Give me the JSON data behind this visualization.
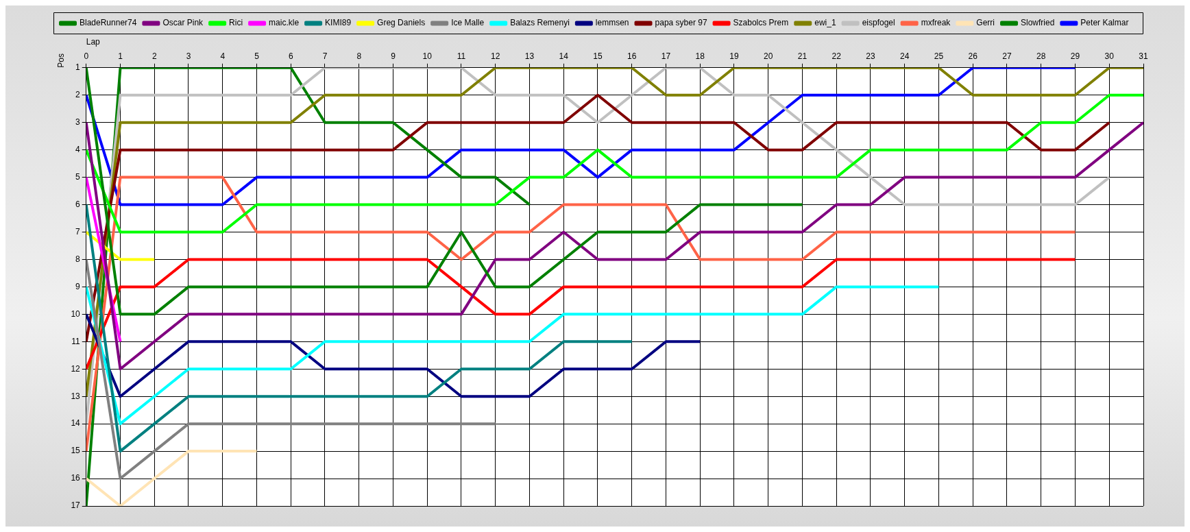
{
  "chart_data": {
    "type": "line",
    "xlabel": "Lap",
    "ylabel": "Pos",
    "x": [
      0,
      1,
      2,
      3,
      4,
      5,
      6,
      7,
      8,
      9,
      10,
      11,
      12,
      13,
      14,
      15,
      16,
      17,
      18,
      19,
      20,
      21,
      22,
      23,
      24,
      25,
      26,
      27,
      28,
      29,
      30,
      31
    ],
    "xlim": [
      0,
      31
    ],
    "xticks": [
      0,
      1,
      2,
      3,
      4,
      5,
      6,
      7,
      8,
      9,
      10,
      11,
      12,
      13,
      14,
      15,
      16,
      17,
      18,
      19,
      20,
      21,
      22,
      23,
      24,
      25,
      26,
      27,
      28,
      29,
      30,
      31
    ],
    "ylim": [
      17,
      1
    ],
    "yticks": [
      1,
      2,
      3,
      4,
      5,
      6,
      7,
      8,
      9,
      10,
      11,
      12,
      13,
      14,
      15,
      16,
      17
    ],
    "grid": true,
    "legend": "top",
    "marker": "none",
    "line_style": "solid",
    "series": [
      {
        "name": "BladeRunner74",
        "color": "#008000",
        "values": [
          1,
          10,
          10,
          9,
          9,
          9,
          9,
          9,
          9,
          9,
          9,
          7,
          9,
          9,
          8,
          7,
          7,
          7,
          6,
          6,
          6,
          6,
          null,
          null,
          null,
          null,
          null,
          null,
          null,
          null,
          null,
          null
        ]
      },
      {
        "name": "Oscar Pink",
        "color": "#800080",
        "values": [
          3,
          12,
          11,
          10,
          10,
          10,
          10,
          10,
          10,
          10,
          10,
          10,
          8,
          8,
          7,
          8,
          8,
          8,
          7,
          7,
          7,
          7,
          6,
          6,
          5,
          5,
          5,
          5,
          5,
          5,
          4,
          3
        ]
      },
      {
        "name": "Rici",
        "color": "#00ff00",
        "values": [
          4,
          7,
          7,
          7,
          7,
          6,
          6,
          6,
          6,
          6,
          6,
          6,
          6,
          5,
          5,
          4,
          5,
          5,
          5,
          5,
          5,
          5,
          5,
          4,
          4,
          4,
          4,
          4,
          3,
          3,
          2,
          2
        ]
      },
      {
        "name": "maic.kle",
        "color": "#ff00ff",
        "values": [
          5,
          11,
          null,
          null,
          null,
          null,
          null,
          null,
          null,
          null,
          null,
          null,
          null,
          null,
          null,
          null,
          null,
          null,
          null,
          null,
          null,
          null,
          null,
          null,
          null,
          null,
          null,
          null,
          null,
          null,
          null,
          null
        ]
      },
      {
        "name": "KIMI89",
        "color": "#008080",
        "values": [
          6,
          15,
          14,
          13,
          13,
          13,
          13,
          13,
          13,
          13,
          13,
          12,
          12,
          12,
          11,
          11,
          11,
          null,
          null,
          null,
          null,
          null,
          null,
          null,
          null,
          null,
          null,
          null,
          null,
          null,
          null,
          null
        ]
      },
      {
        "name": "Greg Daniels",
        "color": "#ffff00",
        "values": [
          7,
          8,
          8,
          null,
          null,
          null,
          null,
          null,
          null,
          null,
          null,
          null,
          null,
          null,
          null,
          null,
          null,
          null,
          null,
          null,
          null,
          null,
          null,
          null,
          null,
          null,
          null,
          null,
          null,
          null,
          null,
          null
        ]
      },
      {
        "name": "Ice Malle",
        "color": "#808080",
        "values": [
          8,
          16,
          15,
          14,
          14,
          14,
          14,
          14,
          14,
          14,
          14,
          14,
          14,
          null,
          null,
          null,
          null,
          null,
          null,
          null,
          null,
          null,
          null,
          null,
          null,
          null,
          null,
          null,
          null,
          null,
          null,
          null
        ]
      },
      {
        "name": "Balazs Remenyi",
        "color": "#00ffff",
        "values": [
          9,
          14,
          13,
          12,
          12,
          12,
          12,
          11,
          11,
          11,
          11,
          11,
          11,
          11,
          10,
          10,
          10,
          10,
          10,
          10,
          10,
          10,
          9,
          9,
          9,
          9,
          null,
          null,
          null,
          null,
          null,
          null
        ]
      },
      {
        "name": "lemmsen",
        "color": "#000080",
        "values": [
          10,
          13,
          12,
          11,
          11,
          11,
          11,
          12,
          12,
          12,
          12,
          13,
          13,
          13,
          12,
          12,
          12,
          11,
          11,
          null,
          null,
          null,
          null,
          null,
          null,
          null,
          null,
          null,
          null,
          null,
          null,
          null
        ]
      },
      {
        "name": "papa syber 97",
        "color": "#800000",
        "values": [
          11,
          4,
          4,
          4,
          4,
          4,
          4,
          4,
          4,
          4,
          3,
          3,
          3,
          3,
          3,
          2,
          3,
          3,
          3,
          3,
          4,
          4,
          3,
          3,
          3,
          3,
          3,
          3,
          4,
          4,
          3,
          null
        ]
      },
      {
        "name": "Szabolcs Prem",
        "color": "#ff0000",
        "values": [
          12,
          9,
          9,
          8,
          8,
          8,
          8,
          8,
          8,
          8,
          8,
          9,
          10,
          10,
          9,
          9,
          9,
          9,
          9,
          9,
          9,
          9,
          8,
          8,
          8,
          8,
          8,
          8,
          8,
          8,
          null,
          null
        ]
      },
      {
        "name": "ewi_1",
        "color": "#808000",
        "values": [
          13,
          3,
          3,
          3,
          3,
          3,
          3,
          2,
          2,
          2,
          2,
          2,
          1,
          1,
          1,
          1,
          1,
          2,
          2,
          1,
          1,
          1,
          1,
          1,
          1,
          1,
          2,
          2,
          2,
          2,
          1,
          1
        ]
      },
      {
        "name": "eispfogel",
        "color": "#c0c0c0",
        "values": [
          14,
          2,
          2,
          2,
          2,
          2,
          2,
          1,
          1,
          1,
          1,
          1,
          2,
          2,
          2,
          3,
          2,
          1,
          1,
          2,
          2,
          3,
          4,
          5,
          6,
          6,
          6,
          6,
          6,
          6,
          5,
          null
        ]
      },
      {
        "name": "mxfreak",
        "color": "#ff6347",
        "values": [
          15,
          5,
          5,
          5,
          5,
          7,
          7,
          7,
          7,
          7,
          7,
          8,
          7,
          7,
          6,
          6,
          6,
          6,
          8,
          8,
          8,
          8,
          7,
          7,
          7,
          7,
          7,
          7,
          7,
          7,
          null,
          null
        ]
      },
      {
        "name": "Gerri",
        "color": "#ffe4b5",
        "values": [
          16,
          17,
          16,
          15,
          15,
          15,
          null,
          null,
          null,
          null,
          null,
          null,
          null,
          null,
          null,
          null,
          null,
          null,
          null,
          null,
          null,
          null,
          null,
          null,
          null,
          null,
          null,
          null,
          null,
          null,
          null,
          null
        ]
      },
      {
        "name": "Slowfried",
        "color": "#008000",
        "values": [
          17,
          1,
          1,
          1,
          1,
          1,
          1,
          3,
          3,
          3,
          4,
          5,
          5,
          6,
          null,
          null,
          null,
          null,
          null,
          null,
          null,
          null,
          null,
          null,
          null,
          null,
          null,
          null,
          null,
          null,
          null,
          null
        ]
      },
      {
        "name": "Peter Kalmar",
        "color": "#0000ff",
        "values": [
          2,
          6,
          6,
          6,
          6,
          5,
          5,
          5,
          5,
          5,
          5,
          4,
          4,
          4,
          4,
          5,
          4,
          4,
          4,
          4,
          3,
          2,
          2,
          2,
          2,
          2,
          1,
          1,
          1,
          1,
          null,
          null
        ]
      }
    ]
  }
}
